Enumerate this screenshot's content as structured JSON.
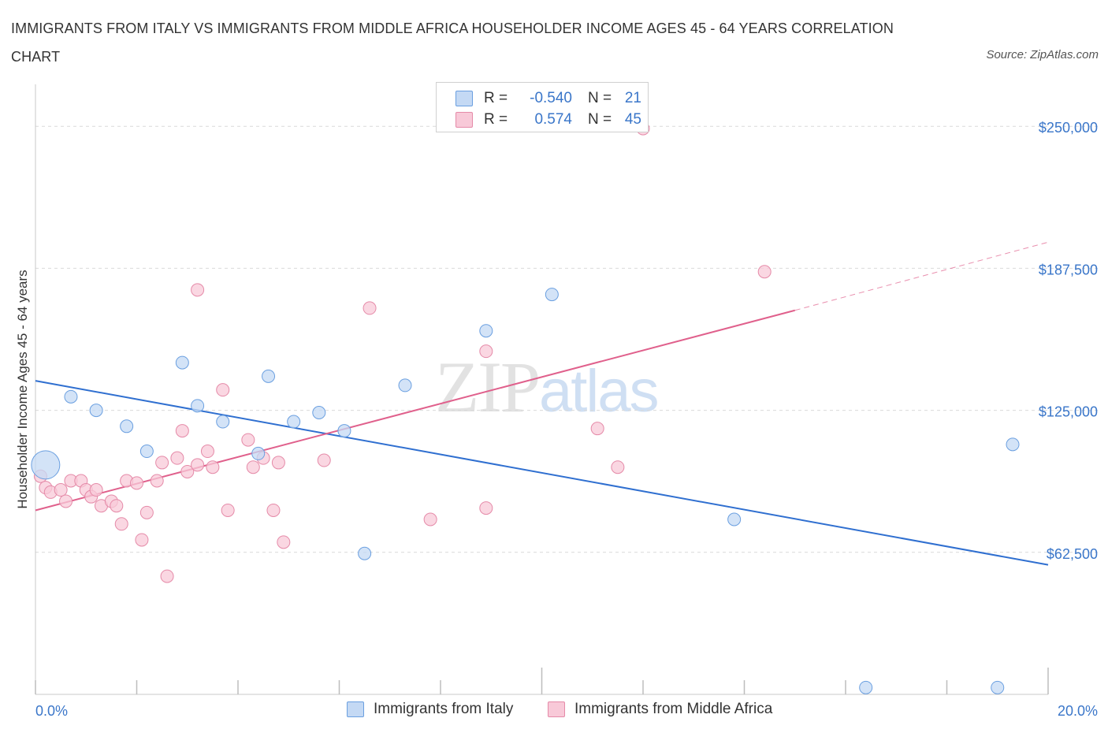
{
  "title": "IMMIGRANTS FROM ITALY VS IMMIGRANTS FROM MIDDLE AFRICA HOUSEHOLDER INCOME AGES 45 - 64 YEARS CORRELATION CHART",
  "source": "Source: ZipAtlas.com",
  "watermark": {
    "zip": "ZIP",
    "atlas": "atlas"
  },
  "legend": {
    "r_label": "R =",
    "n_label": "N =",
    "italy": {
      "r": "-0.540",
      "n": "21"
    },
    "africa": {
      "r": "0.574",
      "n": "45"
    }
  },
  "colors": {
    "italy_fill": "#c4d9f4",
    "italy_stroke": "#6a9fe0",
    "italy_line": "#2f6fd0",
    "africa_fill": "#f8c9d8",
    "africa_stroke": "#e58aa8",
    "africa_line": "#e0608c",
    "grid": "#d9d9d9",
    "tick_text": "#3a76c9"
  },
  "chart_data": {
    "type": "scatter",
    "title": "IMMIGRANTS FROM ITALY VS IMMIGRANTS FROM MIDDLE AFRICA HOUSEHOLDER INCOME AGES 45 - 64 YEARS CORRELATION CHART",
    "xlabel": "",
    "ylabel": "Householder Income Ages 45 - 64 years",
    "xlim": [
      0,
      20
    ],
    "ylim": [
      0,
      265000
    ],
    "x_tick_labels": [
      "0.0%",
      "20.0%"
    ],
    "y_ticks": [
      62500,
      125000,
      187500,
      250000
    ],
    "y_tick_labels": [
      "$62,500",
      "$125,000",
      "$187,500",
      "$250,000"
    ],
    "grid": true,
    "legend_position": "top-center",
    "series": [
      {
        "name": "Immigrants from Italy",
        "points": [
          [
            0.2,
            101000
          ],
          [
            0.7,
            131000
          ],
          [
            1.2,
            125000
          ],
          [
            1.8,
            118000
          ],
          [
            2.2,
            107000
          ],
          [
            2.9,
            146000
          ],
          [
            3.2,
            127000
          ],
          [
            3.7,
            120000
          ],
          [
            4.4,
            106000
          ],
          [
            4.6,
            140000
          ],
          [
            5.1,
            120000
          ],
          [
            5.6,
            124000
          ],
          [
            6.1,
            116000
          ],
          [
            6.5,
            62000
          ],
          [
            7.3,
            136000
          ],
          [
            8.9,
            160000
          ],
          [
            10.2,
            176000
          ],
          [
            13.8,
            77000
          ],
          [
            16.4,
            3000
          ],
          [
            19.3,
            110000
          ],
          [
            19.0,
            3000
          ]
        ],
        "sizes": [
          3,
          1,
          1,
          1,
          1,
          1,
          1,
          1,
          1,
          1,
          1,
          1,
          1,
          1,
          1,
          1,
          1,
          1,
          1,
          1,
          1
        ],
        "trend": [
          [
            0,
            138000
          ],
          [
            20,
            57000
          ]
        ]
      },
      {
        "name": "Immigrants from Middle Africa",
        "points": [
          [
            0.1,
            96000
          ],
          [
            0.2,
            91000
          ],
          [
            0.3,
            89000
          ],
          [
            0.5,
            90000
          ],
          [
            0.6,
            85000
          ],
          [
            0.7,
            94000
          ],
          [
            0.9,
            94000
          ],
          [
            1.0,
            90000
          ],
          [
            1.1,
            87000
          ],
          [
            1.2,
            90000
          ],
          [
            1.3,
            83000
          ],
          [
            1.5,
            85000
          ],
          [
            1.6,
            83000
          ],
          [
            1.7,
            75000
          ],
          [
            1.8,
            94000
          ],
          [
            2.0,
            93000
          ],
          [
            2.1,
            68000
          ],
          [
            2.2,
            80000
          ],
          [
            2.4,
            94000
          ],
          [
            2.5,
            102000
          ],
          [
            2.6,
            52000
          ],
          [
            2.8,
            104000
          ],
          [
            2.9,
            116000
          ],
          [
            3.0,
            98000
          ],
          [
            3.2,
            101000
          ],
          [
            3.2,
            178000
          ],
          [
            3.4,
            107000
          ],
          [
            3.5,
            100000
          ],
          [
            3.7,
            134000
          ],
          [
            3.8,
            81000
          ],
          [
            4.2,
            112000
          ],
          [
            4.3,
            100000
          ],
          [
            4.5,
            104000
          ],
          [
            4.7,
            81000
          ],
          [
            4.8,
            102000
          ],
          [
            4.9,
            67000
          ],
          [
            5.7,
            103000
          ],
          [
            6.6,
            170000
          ],
          [
            7.8,
            77000
          ],
          [
            8.9,
            151000
          ],
          [
            8.9,
            82000
          ],
          [
            11.1,
            117000
          ],
          [
            11.5,
            100000
          ],
          [
            12.0,
            249000
          ],
          [
            14.4,
            186000
          ]
        ],
        "trend": [
          [
            0,
            81000
          ],
          [
            15,
            169000
          ]
        ],
        "trend_dashed": [
          [
            15,
            169000
          ],
          [
            20,
            199000
          ]
        ]
      }
    ]
  },
  "bottom_legend": {
    "italy": "Immigrants from Italy",
    "africa": "Immigrants from Middle Africa"
  }
}
